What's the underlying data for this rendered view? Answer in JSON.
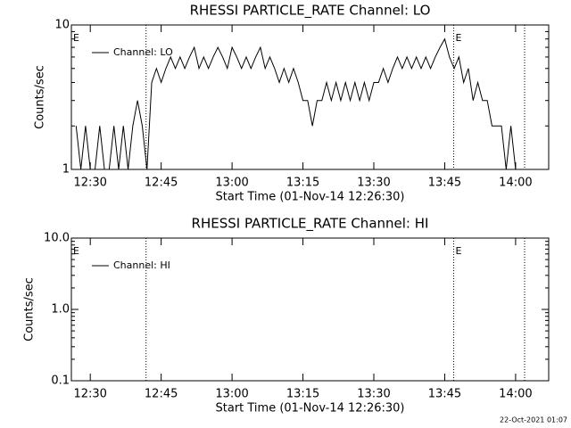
{
  "chart_data": [
    {
      "type": "line",
      "title": "RHESSI PARTICLE_RATE Channel: LO",
      "xlabel": "Start Time (01-Nov-14 12:26:30)",
      "ylabel": "Counts/sec",
      "log_y": true,
      "xlim": [
        26,
        127
      ],
      "ylim": [
        1,
        10
      ],
      "xticks": [
        {
          "value": 30,
          "label": "12:30"
        },
        {
          "value": 45,
          "label": "12:45"
        },
        {
          "value": 60,
          "label": "13:00"
        },
        {
          "value": 75,
          "label": "13:15"
        },
        {
          "value": 90,
          "label": "13:30"
        },
        {
          "value": 105,
          "label": "13:45"
        },
        {
          "value": 120,
          "label": "14:00"
        }
      ],
      "yticks": [
        1,
        10
      ],
      "markers": [
        41.8,
        106.9,
        121.9
      ],
      "annotations": [
        {
          "text": "E",
          "x": 26
        },
        {
          "text": "E",
          "x": 106.9
        }
      ],
      "legend": "upper left",
      "x": [
        27,
        28,
        29,
        30,
        31,
        32,
        33,
        34,
        35,
        36,
        37,
        38,
        39,
        40,
        41,
        42,
        43,
        44,
        45,
        46,
        47,
        48,
        49,
        50,
        51,
        52,
        53,
        54,
        55,
        56,
        57,
        58,
        59,
        60,
        61,
        62,
        63,
        64,
        65,
        66,
        67,
        68,
        69,
        70,
        71,
        72,
        73,
        74,
        75,
        76,
        77,
        78,
        79,
        80,
        81,
        82,
        83,
        84,
        85,
        86,
        87,
        88,
        89,
        90,
        91,
        92,
        93,
        94,
        95,
        96,
        97,
        98,
        99,
        100,
        101,
        102,
        103,
        104,
        105,
        106,
        107,
        108,
        109,
        110,
        111,
        112,
        113,
        114,
        115,
        116,
        117,
        118,
        119,
        120,
        121
      ],
      "series": [
        {
          "name": "Channel: LO",
          "color": "#000000",
          "values": [
            2,
            1,
            2,
            1,
            1,
            2,
            1,
            1,
            2,
            1,
            2,
            1,
            2,
            3,
            2,
            1,
            4,
            5,
            4,
            5,
            6,
            5,
            6,
            5,
            6,
            7,
            5,
            6,
            5,
            6,
            7,
            6,
            5,
            7,
            6,
            5,
            6,
            5,
            6,
            7,
            5,
            6,
            5,
            4,
            5,
            4,
            5,
            4,
            3,
            3,
            2,
            3,
            3,
            4,
            3,
            4,
            3,
            4,
            3,
            4,
            3,
            4,
            3,
            4,
            4,
            5,
            4,
            5,
            6,
            5,
            6,
            5,
            6,
            5,
            6,
            5,
            6,
            7,
            8,
            6,
            5,
            6,
            4,
            5,
            3,
            4,
            3,
            3,
            2,
            2,
            2,
            1,
            2,
            1,
            1
          ]
        }
      ]
    },
    {
      "type": "line",
      "title": "RHESSI PARTICLE_RATE Channel: HI",
      "xlabel": "Start Time (01-Nov-14 12:26:30)",
      "ylabel": "Counts/sec",
      "log_y": true,
      "xlim": [
        26,
        127
      ],
      "ylim": [
        0.1,
        10
      ],
      "xticks": [
        {
          "value": 30,
          "label": "12:30"
        },
        {
          "value": 45,
          "label": "12:45"
        },
        {
          "value": 60,
          "label": "13:00"
        },
        {
          "value": 75,
          "label": "13:15"
        },
        {
          "value": 90,
          "label": "13:30"
        },
        {
          "value": 105,
          "label": "13:45"
        },
        {
          "value": 120,
          "label": "14:00"
        }
      ],
      "yticks": [
        0.1,
        {
          "value": 1,
          "label": "1.0"
        },
        {
          "value": 10,
          "label": "10.0"
        }
      ],
      "markers": [
        41.8,
        106.9,
        121.9
      ],
      "annotations": [
        {
          "text": "E",
          "x": 26
        },
        {
          "text": "E",
          "x": 106.9
        }
      ],
      "legend": "upper left",
      "x": [],
      "series": [
        {
          "name": "Channel: HI",
          "color": "#000000",
          "values": []
        }
      ]
    }
  ],
  "footer": "22-Oct-2021 01:07"
}
